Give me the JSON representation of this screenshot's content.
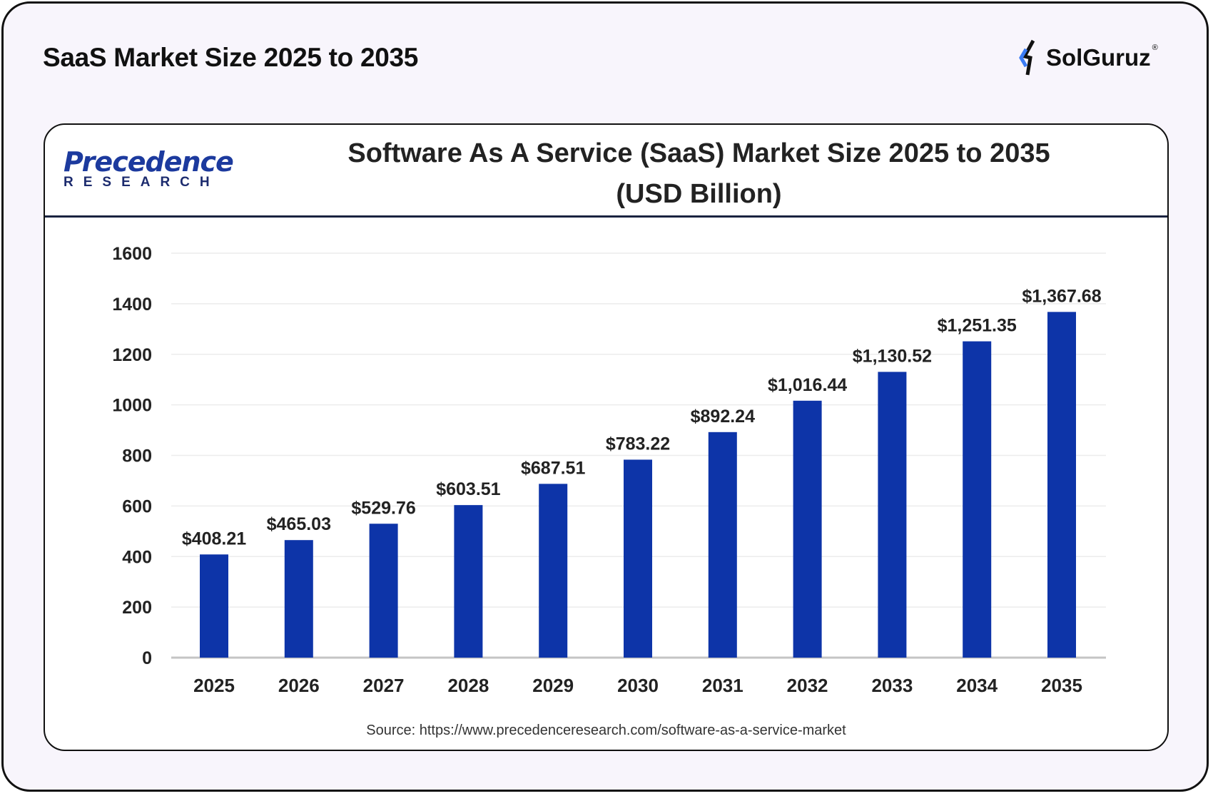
{
  "header": {
    "title": "SaaS Market Size 2025 to 2035",
    "brand": "SolGuruz",
    "brand_mark": "®"
  },
  "source_logo": {
    "line1": "Precedence",
    "line2": "RESEARCH"
  },
  "source_text": "Source: https://www.precedenceresearch.com/software-as-a-service-market",
  "colors": {
    "bar": "#0d34a8",
    "background": "#f8f5fc",
    "brand_accent": "#3b7cf5"
  },
  "chart_data": {
    "type": "bar",
    "title": "Software As A Service (SaaS) Market Size 2025 to 2035",
    "subtitle": "(USD Billion)",
    "categories": [
      "2025",
      "2026",
      "2027",
      "2028",
      "2029",
      "2030",
      "2031",
      "2032",
      "2033",
      "2034",
      "2035"
    ],
    "values": [
      408.21,
      465.03,
      529.76,
      603.51,
      687.51,
      783.22,
      892.24,
      1016.44,
      1130.52,
      1251.35,
      1367.68
    ],
    "data_labels": [
      "$408.21",
      "$465.03",
      "$529.76",
      "$603.51",
      "$687.51",
      "$783.22",
      "$892.24",
      "$1,016.44",
      "$1,130.52",
      "$1,251.35",
      "$1,367.68"
    ],
    "yticks": [
      0,
      200,
      400,
      600,
      800,
      1000,
      1200,
      1400,
      1600
    ],
    "ylim": [
      0,
      1600
    ],
    "xlabel": "",
    "ylabel": "",
    "grid": true,
    "legend": "none"
  }
}
